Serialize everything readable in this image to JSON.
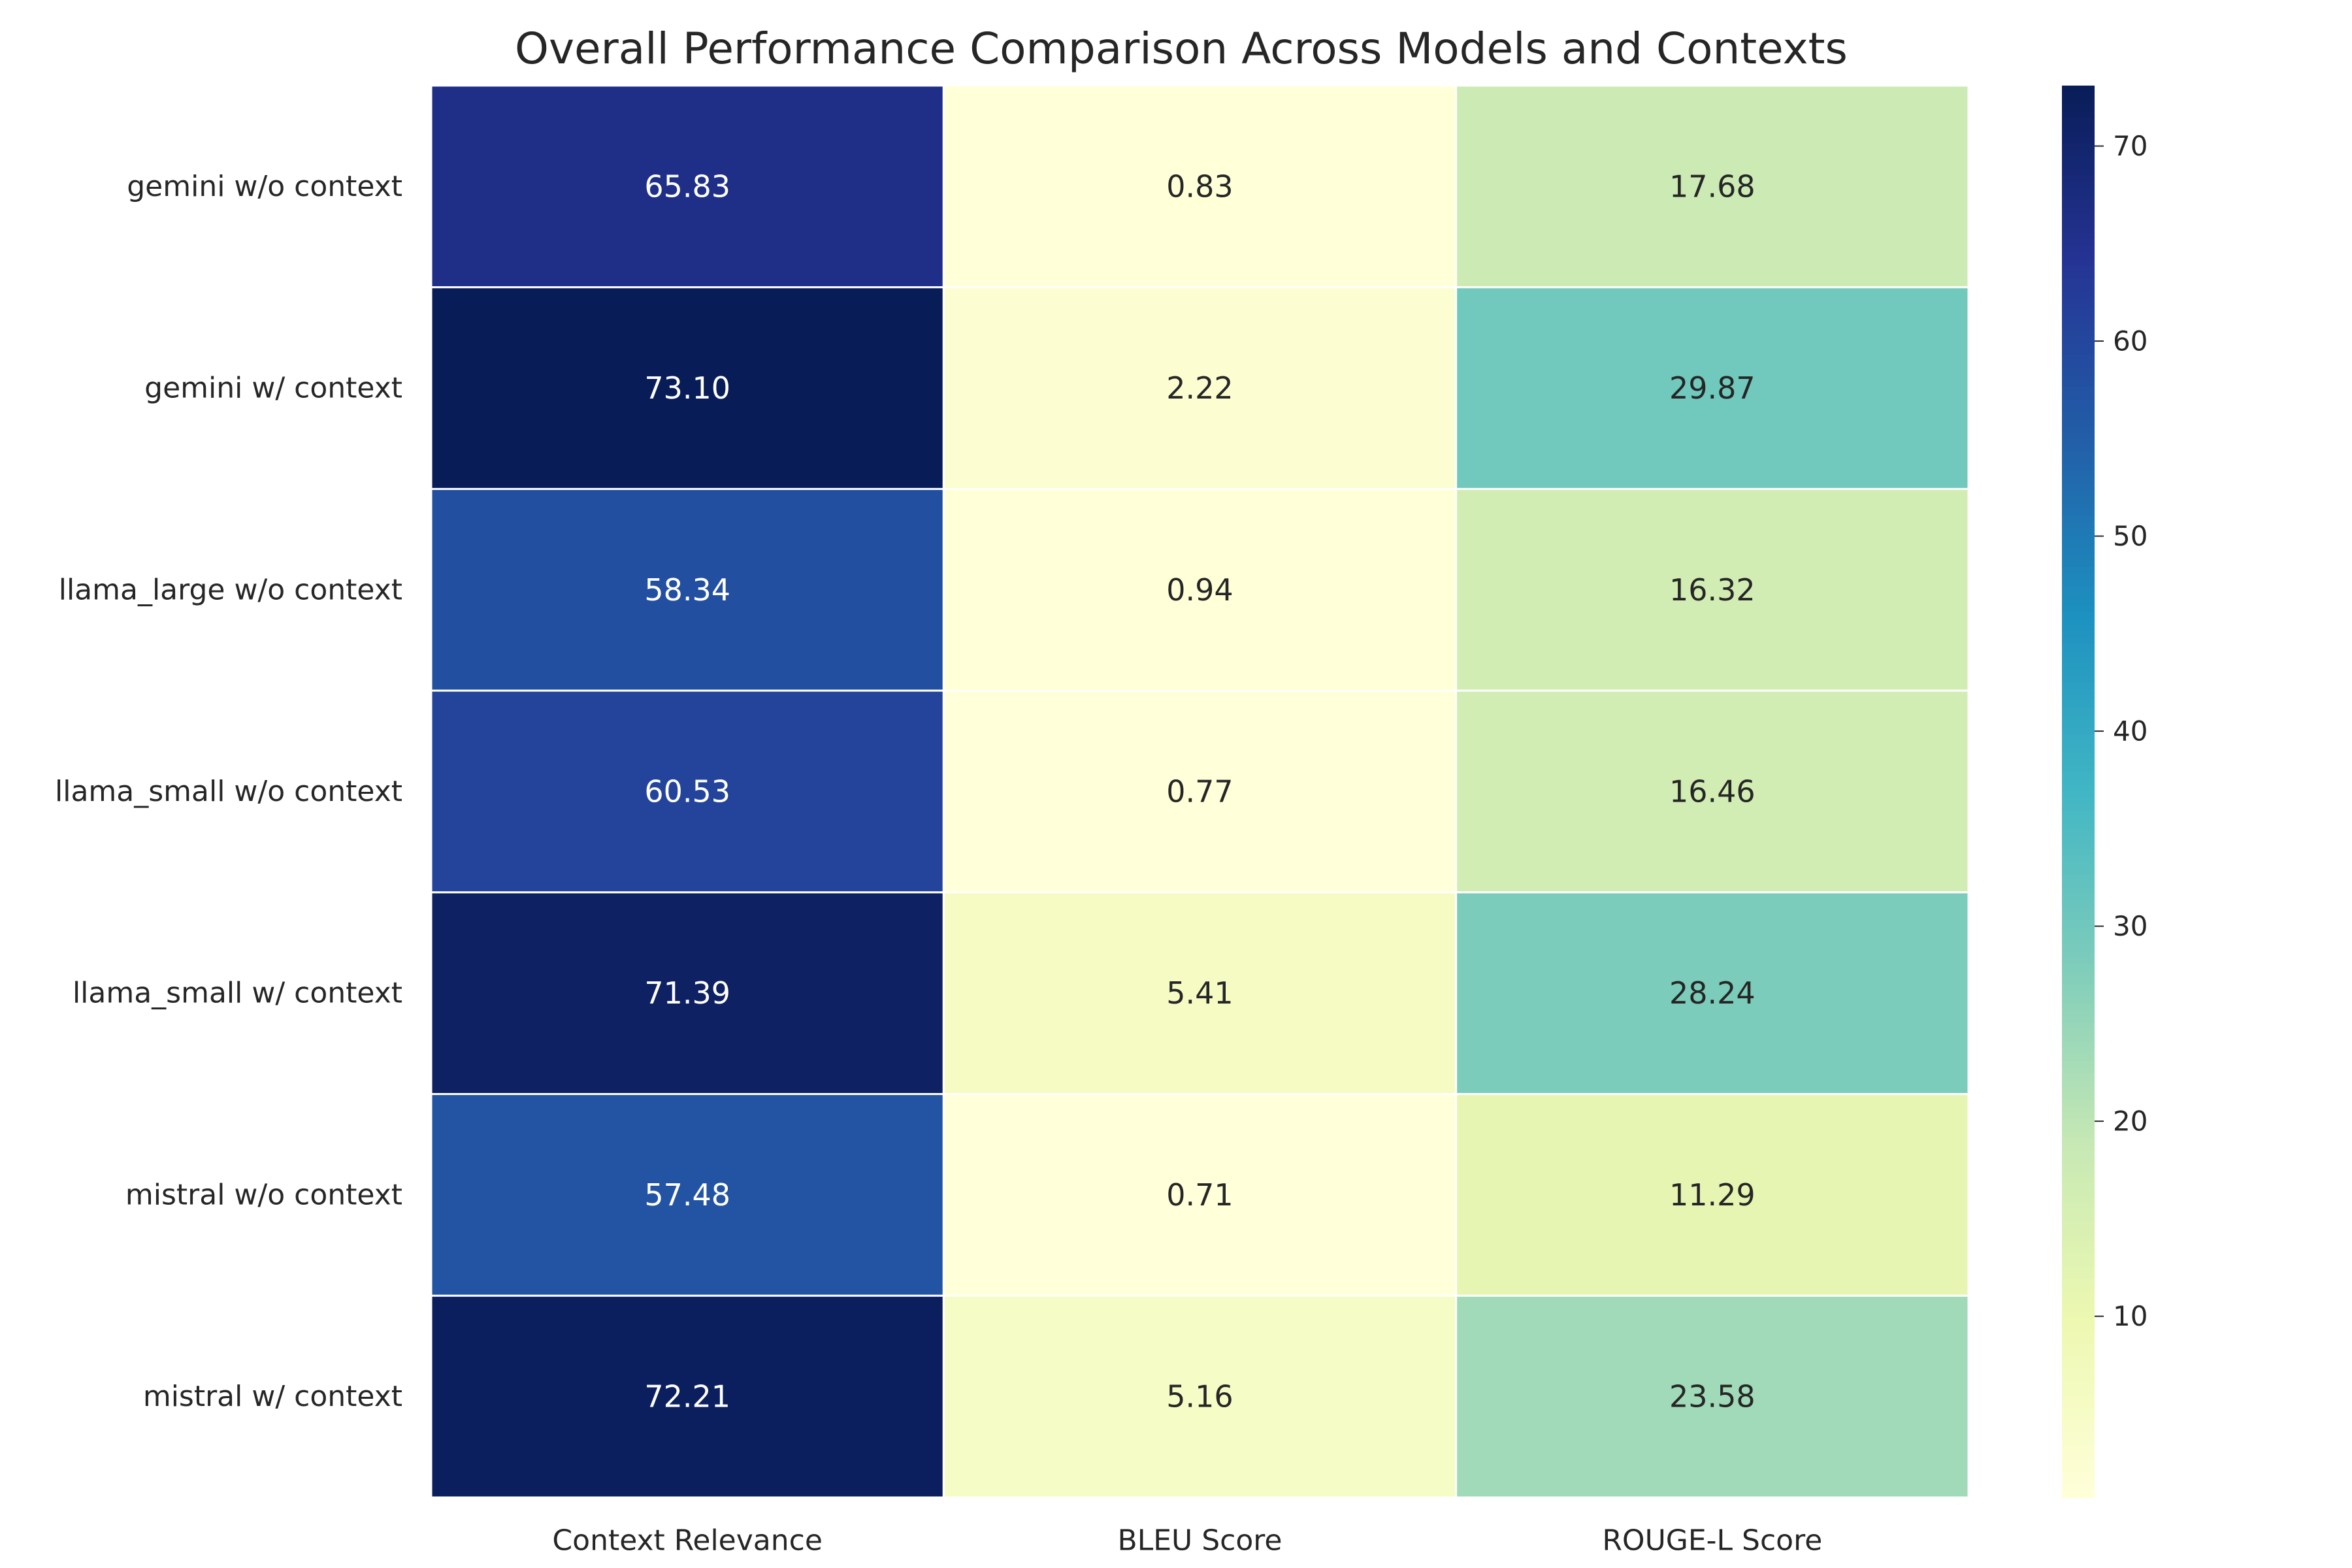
{
  "chart_data": {
    "type": "heatmap",
    "title": "Overall Performance Comparison Across Models and Contexts",
    "rows": [
      "gemini w/o context",
      "gemini w/ context",
      "llama_large w/o context",
      "llama_small w/o context",
      "llama_small w/ context",
      "mistral w/o context",
      "mistral w/ context"
    ],
    "columns": [
      "Context Relevance",
      "BLEU Score",
      "ROUGE-L Score"
    ],
    "values": [
      [
        65.83,
        0.83,
        17.68
      ],
      [
        73.1,
        2.22,
        29.87
      ],
      [
        58.34,
        0.94,
        16.32
      ],
      [
        60.53,
        0.77,
        16.46
      ],
      [
        71.39,
        5.41,
        28.24
      ],
      [
        57.48,
        0.71,
        11.29
      ],
      [
        72.21,
        5.16,
        23.58
      ]
    ],
    "value_labels": [
      [
        "65.83",
        "0.83",
        "17.68"
      ],
      [
        "73.10",
        "2.22",
        "29.87"
      ],
      [
        "58.34",
        "0.94",
        "16.32"
      ],
      [
        "60.53",
        "0.77",
        "16.46"
      ],
      [
        "71.39",
        "5.41",
        "28.24"
      ],
      [
        "57.48",
        "0.71",
        "11.29"
      ],
      [
        "72.21",
        "5.16",
        "23.58"
      ]
    ],
    "colormap": "YlGnBu",
    "colorbar": {
      "vmin": 0.71,
      "vmax": 73.1,
      "ticks": [
        10,
        20,
        30,
        40,
        50,
        60,
        70
      ],
      "tick_labels": [
        "10",
        "20",
        "30",
        "40",
        "50",
        "60",
        "70"
      ]
    },
    "annotated": true,
    "grid_lines_color": "#ffffff"
  }
}
